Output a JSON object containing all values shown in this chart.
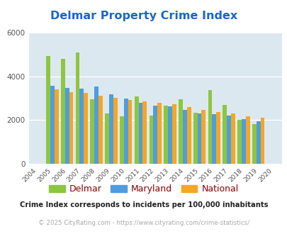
{
  "title": "Delmar Property Crime Index",
  "title_color": "#1a66cc",
  "years": [
    2004,
    2005,
    2006,
    2007,
    2008,
    2009,
    2010,
    2011,
    2012,
    2013,
    2014,
    2015,
    2016,
    2017,
    2018,
    2019,
    2020
  ],
  "delmar": [
    null,
    4950,
    4820,
    5100,
    2950,
    2320,
    2160,
    3100,
    2220,
    2650,
    2940,
    2340,
    3370,
    2700,
    2000,
    1810,
    null
  ],
  "maryland": [
    null,
    3560,
    3460,
    3440,
    3530,
    3180,
    2980,
    2790,
    2660,
    2620,
    2470,
    2310,
    2260,
    2200,
    2060,
    1960,
    null
  ],
  "national": [
    null,
    3400,
    3290,
    3250,
    3130,
    3010,
    2930,
    2860,
    2790,
    2740,
    2610,
    2470,
    2370,
    2290,
    2190,
    2110,
    null
  ],
  "delmar_color": "#8dc63f",
  "maryland_color": "#4d9de0",
  "national_color": "#f5a623",
  "bg_color": "#dce8f0",
  "ylim": [
    0,
    6000
  ],
  "yticks": [
    0,
    2000,
    4000,
    6000
  ],
  "footnote1": "Crime Index corresponds to incidents per 100,000 inhabitants",
  "footnote2": "© 2025 CityRating.com - https://www.cityrating.com/crime-statistics/",
  "footnote1_color": "#222222",
  "footnote2_color": "#aaaaaa",
  "legend_labels": [
    "Delmar",
    "Maryland",
    "National"
  ],
  "legend_label_color": "#8B0000"
}
